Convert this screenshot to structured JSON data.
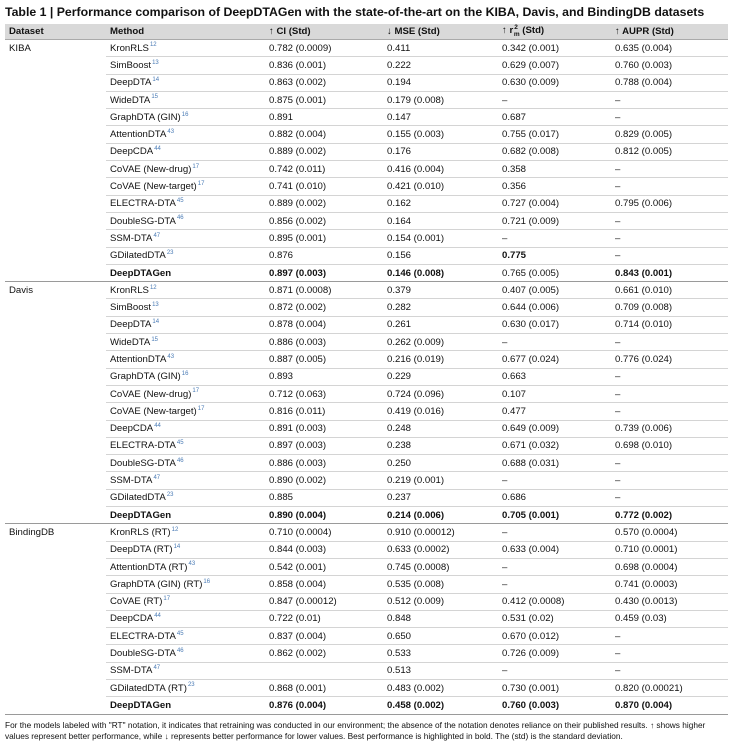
{
  "title": "Table 1 | Performance comparison of DeepDTAGen with the state-of-the-art on the KIBA, Davis, and BindingDB datasets",
  "headers": {
    "dataset": "Dataset",
    "method": "Method",
    "ci": "↑ CI (Std)",
    "mse": "↓ MSE (Std)",
    "r2m_prefix": "↑ r",
    "r2m_sup": "2",
    "r2m_sub": "m",
    "r2m_suffix": " (Std)",
    "aupr": "↑ AUPR (Std)"
  },
  "groups": [
    {
      "dataset": "KIBA",
      "rows": [
        {
          "method": "KronRLS",
          "ref": "12",
          "ci": "0.782 (0.0009)",
          "mse": "0.411",
          "r2m": "0.342 (0.001)",
          "aupr": "0.635 (0.004)"
        },
        {
          "method": "SimBoost",
          "ref": "13",
          "ci": "0.836 (0.001)",
          "mse": "0.222",
          "r2m": "0.629 (0.007)",
          "aupr": "0.760 (0.003)"
        },
        {
          "method": "DeepDTA",
          "ref": "14",
          "ci": "0.863 (0.002)",
          "mse": "0.194",
          "r2m": "0.630 (0.009)",
          "aupr": "0.788 (0.004)"
        },
        {
          "method": "WideDTA",
          "ref": "15",
          "ci": "0.875 (0.001)",
          "mse": "0.179 (0.008)",
          "r2m": "–",
          "aupr": "–"
        },
        {
          "method": "GraphDTA (GIN)",
          "ref": "16",
          "ci": "0.891",
          "mse": "0.147",
          "r2m": "0.687",
          "aupr": "–"
        },
        {
          "method": "AttentionDTA",
          "ref": "43",
          "ci": "0.882 (0.004)",
          "mse": "0.155 (0.003)",
          "r2m": "0.755 (0.017)",
          "aupr": "0.829 (0.005)"
        },
        {
          "method": "DeepCDA",
          "ref": "44",
          "ci": "0.889 (0.002)",
          "mse": "0.176",
          "r2m": "0.682 (0.008)",
          "aupr": "0.812 (0.005)"
        },
        {
          "method": "CoVAE (New-drug)",
          "ref": "17",
          "ci": "0.742 (0.011)",
          "mse": "0.416 (0.004)",
          "r2m": "0.358",
          "aupr": "–"
        },
        {
          "method": "CoVAE (New-target)",
          "ref": "17",
          "ci": "0.741 (0.010)",
          "mse": "0.421 (0.010)",
          "r2m": "0.356",
          "aupr": "–"
        },
        {
          "method": "ELECTRA-DTA",
          "ref": "45",
          "ci": "0.889 (0.002)",
          "mse": "0.162",
          "r2m": "0.727 (0.004)",
          "aupr": "0.795 (0.006)"
        },
        {
          "method": "DoubleSG-DTA",
          "ref": "46",
          "ci": "0.856 (0.002)",
          "mse": "0.164",
          "r2m": "0.721 (0.009)",
          "aupr": "–"
        },
        {
          "method": "SSM-DTA",
          "ref": "47",
          "ci": "0.895 (0.001)",
          "mse": "0.154 (0.001)",
          "r2m": "–",
          "aupr": "–"
        },
        {
          "method": "GDilatedDTA",
          "ref": "23",
          "ci": "0.876",
          "mse": "0.156",
          "r2m": "0.775",
          "aupr": "–",
          "bold_r2m": true
        },
        {
          "method": "DeepDTAGen",
          "ref": "",
          "ci": "0.897 (0.003)",
          "mse": "0.146 (0.008)",
          "r2m": "0.765 (0.005)",
          "aupr": "0.843 (0.001)",
          "bold": true,
          "bold_cols": [
            "ci",
            "mse",
            "aupr"
          ]
        }
      ]
    },
    {
      "dataset": "Davis",
      "rows": [
        {
          "method": "KronRLS",
          "ref": "12",
          "ci": "0.871 (0.0008)",
          "mse": "0.379",
          "r2m": "0.407 (0.005)",
          "aupr": "0.661 (0.010)"
        },
        {
          "method": "SimBoost",
          "ref": "13",
          "ci": "0.872 (0.002)",
          "mse": "0.282",
          "r2m": "0.644 (0.006)",
          "aupr": "0.709 (0.008)"
        },
        {
          "method": "DeepDTA",
          "ref": "14",
          "ci": "0.878 (0.004)",
          "mse": "0.261",
          "r2m": "0.630 (0.017)",
          "aupr": "0.714 (0.010)"
        },
        {
          "method": "WideDTA",
          "ref": "15",
          "ci": "0.886 (0.003)",
          "mse": "0.262 (0.009)",
          "r2m": "–",
          "aupr": "–"
        },
        {
          "method": "AttentionDTA",
          "ref": "43",
          "ci": "0.887 (0.005)",
          "mse": "0.216 (0.019)",
          "r2m": "0.677 (0.024)",
          "aupr": "0.776 (0.024)"
        },
        {
          "method": "GraphDTA (GIN)",
          "ref": "16",
          "ci": "0.893",
          "mse": "0.229",
          "r2m": "0.663",
          "aupr": "–"
        },
        {
          "method": "CoVAE (New-drug)",
          "ref": "17",
          "ci": "0.712 (0.063)",
          "mse": "0.724 (0.096)",
          "r2m": "0.107",
          "aupr": "–"
        },
        {
          "method": "CoVAE (New-target)",
          "ref": "17",
          "ci": "0.816 (0.011)",
          "mse": "0.419 (0.016)",
          "r2m": "0.477",
          "aupr": "–"
        },
        {
          "method": "DeepCDA",
          "ref": "44",
          "ci": "0.891 (0.003)",
          "mse": "0.248",
          "r2m": "0.649 (0.009)",
          "aupr": "0.739 (0.006)"
        },
        {
          "method": "ELECTRA-DTA",
          "ref": "45",
          "ci": "0.897 (0.003)",
          "mse": "0.238",
          "r2m": "0.671 (0.032)",
          "aupr": "0.698 (0.010)"
        },
        {
          "method": "DoubleSG-DTA",
          "ref": "46",
          "ci": "0.886 (0.003)",
          "mse": "0.250",
          "r2m": "0.688 (0.031)",
          "aupr": "–"
        },
        {
          "method": "SSM-DTA",
          "ref": "47",
          "ci": "0.890 (0.002)",
          "mse": "0.219 (0.001)",
          "r2m": "–",
          "aupr": "–"
        },
        {
          "method": "GDilatedDTA",
          "ref": "23",
          "ci": "0.885",
          "mse": "0.237",
          "r2m": "0.686",
          "aupr": "–"
        },
        {
          "method": "DeepDTAGen",
          "ref": "",
          "ci": "0.890 (0.004)",
          "mse": "0.214 (0.006)",
          "r2m": "0.705 (0.001)",
          "aupr": "0.772 (0.002)",
          "bold": true,
          "bold_cols": [
            "ci",
            "mse",
            "r2m",
            "aupr"
          ]
        }
      ]
    },
    {
      "dataset": "BindingDB",
      "rows": [
        {
          "method": "KronRLS (RT)",
          "ref": "12",
          "ci": "0.710 (0.0004)",
          "mse": "0.910 (0.00012)",
          "r2m": "–",
          "aupr": "0.570 (0.0004)"
        },
        {
          "method": "DeepDTA (RT)",
          "ref": "14",
          "ci": "0.844 (0.003)",
          "mse": "0.633 (0.0002)",
          "r2m": "0.633 (0.004)",
          "aupr": "0.710 (0.0001)"
        },
        {
          "method": "AttentionDTA (RT)",
          "ref": "43",
          "ci": "0.542 (0.001)",
          "mse": "0.745 (0.0008)",
          "r2m": "–",
          "aupr": "0.698 (0.0004)"
        },
        {
          "method": "GraphDTA (GIN) (RT)",
          "ref": "16",
          "ci": "0.858 (0.004)",
          "mse": "0.535 (0.008)",
          "r2m": "–",
          "aupr": "0.741 (0.0003)"
        },
        {
          "method": "CoVAE (RT)",
          "ref": "17",
          "ci": "0.847 (0.00012)",
          "mse": "0.512 (0.009)",
          "r2m": "0.412 (0.0008)",
          "aupr": "0.430 (0.0013)"
        },
        {
          "method": "DeepCDA",
          "ref": "44",
          "ci": "0.722 (0.01)",
          "mse": "0.848",
          "r2m": "0.531 (0.02)",
          "aupr": "0.459 (0.03)"
        },
        {
          "method": "ELECTRA-DTA",
          "ref": "45",
          "ci": "0.837 (0.004)",
          "mse": "0.650",
          "r2m": "0.670 (0.012)",
          "aupr": "–"
        },
        {
          "method": "DoubleSG-DTA",
          "ref": "46",
          "ci": "0.862 (0.002)",
          "mse": "0.533",
          "r2m": "0.726 (0.009)",
          "aupr": "–"
        },
        {
          "method": "SSM-DTA",
          "ref": "47",
          "ci": "",
          "mse": "0.513",
          "r2m": "–",
          "aupr": "–"
        },
        {
          "method": "GDilatedDTA (RT)",
          "ref": "23",
          "ci": "0.868 (0.001)",
          "mse": "0.483 (0.002)",
          "r2m": "0.730 (0.001)",
          "aupr": "0.820 (0.00021)"
        },
        {
          "method": "DeepDTAGen",
          "ref": "",
          "ci": "0.876 (0.004)",
          "mse": "0.458 (0.002)",
          "r2m": "0.760 (0.003)",
          "aupr": "0.870 (0.004)",
          "bold": true,
          "bold_cols": [
            "ci",
            "mse",
            "r2m",
            "aupr"
          ]
        }
      ]
    }
  ],
  "footnote": "For the models labeled with \"RT\" notation, it indicates that retraining was conducted in our environment; the absence of the notation denotes reliance on their published results. ↑ shows higher values represent better performance, while ↓ represents better performance for lower values. Best performance is highlighted in bold. The (std) is the standard deviation."
}
